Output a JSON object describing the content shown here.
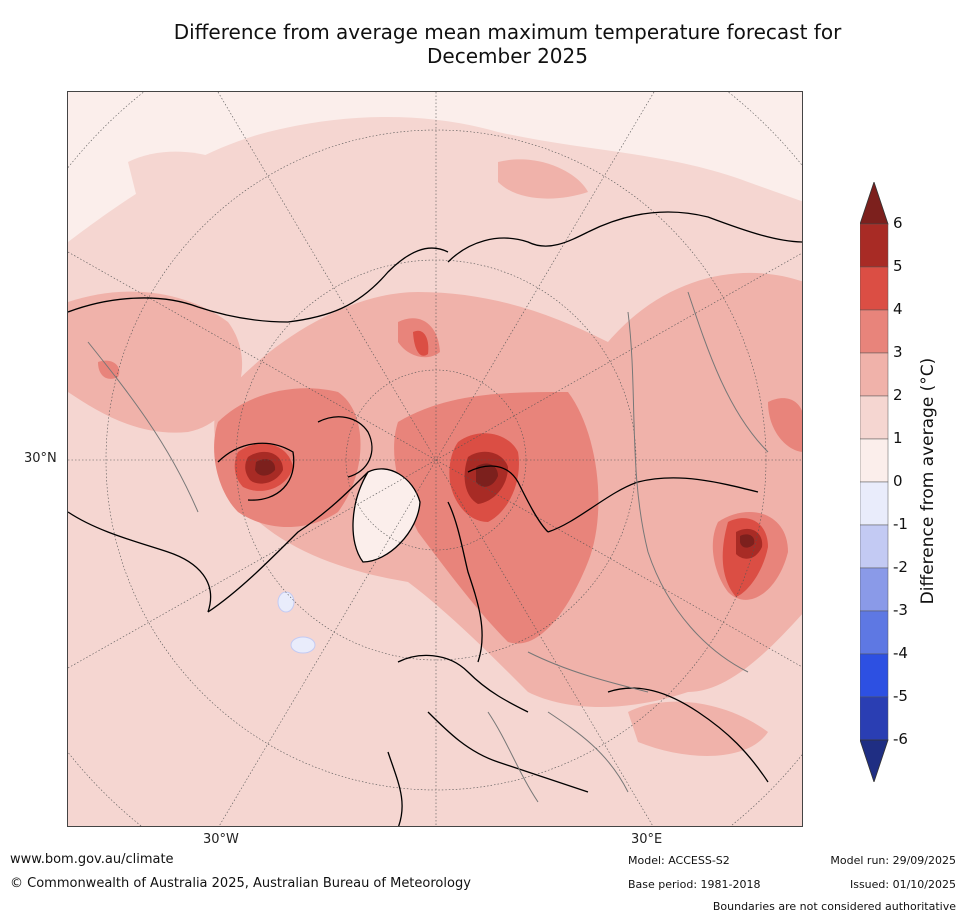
{
  "title_line1": "Difference from average mean maximum temperature forecast for",
  "title_line2": "December 2025",
  "axis_labels": {
    "lat_30n": "30°N",
    "lon_30w": "30°W",
    "lon_30e": "30°E"
  },
  "colorbar": {
    "label": "Difference from average (°C)",
    "ticks": [
      "6",
      "5",
      "4",
      "3",
      "2",
      "1",
      "0",
      "-1",
      "-2",
      "-3",
      "-4",
      "-5",
      "-6"
    ],
    "bands_top_to_bottom": [
      "#a82b25",
      "#db4e44",
      "#e8847b",
      "#f0b2aa",
      "#f5d6d1",
      "#fbeeeb",
      "#e9ecfb",
      "#c3caf3",
      "#8a9ae8",
      "#5e78e3",
      "#2d50e2",
      "#2a3eb3"
    ],
    "over_color": "#7c201d",
    "under_color": "#1f2e83"
  },
  "footer": {
    "website": "www.bom.gov.au/climate",
    "copyright": "© Commonwealth of Australia 2025, Australian Bureau of Meteorology",
    "model": "Model: ACCESS-S2",
    "base_period": "Base period: 1981-2018",
    "model_run": "Model run: 29/09/2025",
    "issued": "Issued: 01/10/2025",
    "disclaimer": "Boundaries are not considered authoritative"
  }
}
